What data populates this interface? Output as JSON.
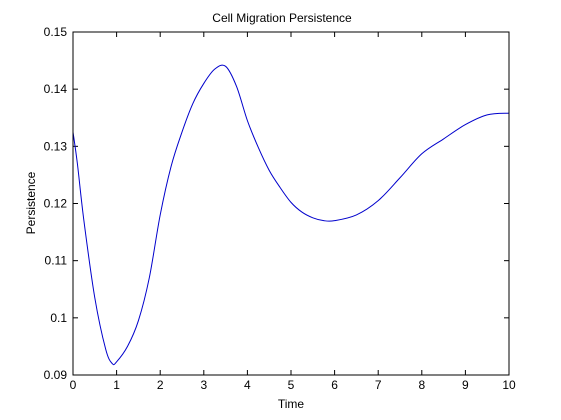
{
  "chart_data": {
    "type": "line",
    "title": "Cell Migration Persistence",
    "xlabel": "Time",
    "ylabel": "Persistence",
    "xlim": [
      0,
      10
    ],
    "ylim": [
      0.09,
      0.15
    ],
    "grid": false,
    "x_ticks": [
      "0",
      "1",
      "2",
      "3",
      "4",
      "5",
      "6",
      "7",
      "8",
      "9",
      "10"
    ],
    "y_ticks": [
      "0.09",
      "0.1",
      "0.11",
      "0.12",
      "0.13",
      "0.14",
      "0.15"
    ],
    "series": [
      {
        "color": "#0000cc",
        "x": [
          0,
          0.1,
          0.25,
          0.5,
          0.75,
          0.9,
          1.0,
          1.25,
          1.5,
          1.75,
          2.0,
          2.25,
          2.5,
          2.75,
          3.0,
          3.25,
          3.5,
          3.75,
          4.0,
          4.25,
          4.5,
          4.75,
          5.0,
          5.25,
          5.5,
          5.75,
          6.0,
          6.5,
          7.0,
          7.5,
          8.0,
          8.5,
          9.0,
          9.5,
          10.0
        ],
        "y": [
          0.1325,
          0.127,
          0.117,
          0.1035,
          0.0945,
          0.092,
          0.0923,
          0.095,
          0.0995,
          0.107,
          0.118,
          0.1265,
          0.1325,
          0.1375,
          0.141,
          0.1435,
          0.144,
          0.1405,
          0.1345,
          0.1298,
          0.1258,
          0.1228,
          0.1202,
          0.1185,
          0.1175,
          0.117,
          0.117,
          0.118,
          0.1205,
          0.1245,
          0.1287,
          0.1313,
          0.1338,
          0.1355,
          0.1358
        ]
      }
    ]
  }
}
